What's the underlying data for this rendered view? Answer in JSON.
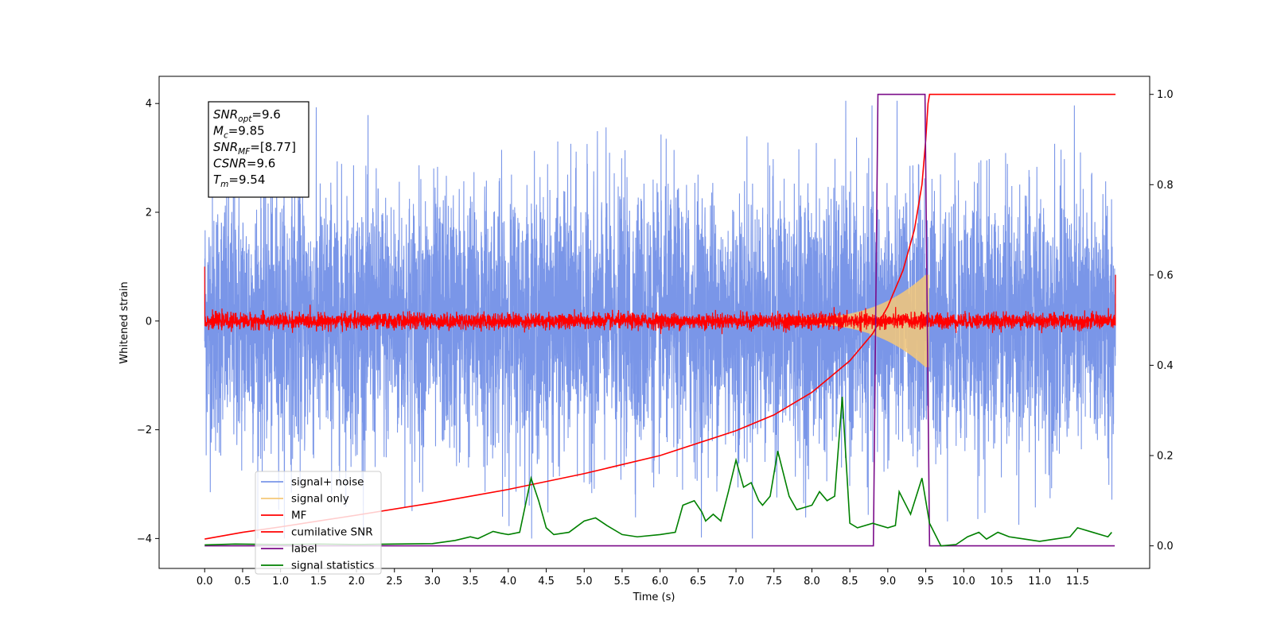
{
  "chart_data": {
    "type": "line",
    "xlabel": "Time (s)",
    "ylabel": "Whitened strain",
    "xlim": [
      -0.6,
      12.45
    ],
    "ylim": [
      -4.55,
      4.5
    ],
    "ylim_right": [
      -0.05,
      1.04
    ],
    "grid": false,
    "legend_position": "lower-left",
    "x_ticks": [
      "0.0",
      "0.5",
      "1.0",
      "1.5",
      "2.0",
      "2.5",
      "3.0",
      "3.5",
      "4.0",
      "4.5",
      "5.0",
      "5.5",
      "6.0",
      "6.5",
      "7.0",
      "7.5",
      "8.0",
      "8.5",
      "9.0",
      "9.5",
      "10.0",
      "10.5",
      "11.0",
      "11.5"
    ],
    "y_ticks_left": [
      "4",
      "2",
      "0",
      "−2",
      "−4"
    ],
    "y_ticks_right": [
      "1.0",
      "0.8",
      "0.6",
      "0.4",
      "0.2",
      "0.0"
    ],
    "annotation": {
      "lines": [
        {
          "var": "SNR",
          "sub": "opt",
          "value": "=9.6"
        },
        {
          "var": "M",
          "sub": "c",
          "value": "=9.85"
        },
        {
          "var": "SNR",
          "sub": "MF",
          "value": "=[8.77]"
        },
        {
          "var": "CSNR",
          "sub": "",
          "value": "=9.6"
        },
        {
          "var": "T",
          "sub": "m",
          "value": "=9.54"
        }
      ]
    },
    "series": [
      {
        "name": "signal+ noise",
        "color": "#7a96e8",
        "axis": "left",
        "description_envelope": {
          "x_range": [
            0.0,
            12.0
          ],
          "typical_amplitude": 1.2,
          "peak_positive": 4.05,
          "peak_negative": -4.0
        }
      },
      {
        "name": "signal only",
        "color": "#f5c878",
        "axis": "left",
        "chirp": {
          "start": 7.6,
          "merger": 9.5,
          "end": 9.54,
          "amplitude_at_start": 0.05,
          "amplitude_at_merger": 0.85
        }
      },
      {
        "name": "MF",
        "color": "#ff0000",
        "axis": "left",
        "description_envelope": {
          "x_range": [
            0.0,
            12.0
          ],
          "typical_amplitude": 0.12,
          "peak": 0.3,
          "edge_value_start": 1.0,
          "edge_value_end": 0.85
        }
      },
      {
        "name": "cumilative SNR",
        "color": "#ff0000",
        "axis": "right",
        "points": [
          [
            0.0,
            0.015
          ],
          [
            0.5,
            0.03
          ],
          [
            1.0,
            0.042
          ],
          [
            2.0,
            0.068
          ],
          [
            3.0,
            0.095
          ],
          [
            4.0,
            0.125
          ],
          [
            5.0,
            0.16
          ],
          [
            6.0,
            0.2
          ],
          [
            7.0,
            0.255
          ],
          [
            7.5,
            0.29
          ],
          [
            8.0,
            0.34
          ],
          [
            8.5,
            0.41
          ],
          [
            8.8,
            0.47
          ],
          [
            9.0,
            0.53
          ],
          [
            9.2,
            0.61
          ],
          [
            9.35,
            0.7
          ],
          [
            9.45,
            0.8
          ],
          [
            9.5,
            0.9
          ],
          [
            9.53,
            0.98
          ],
          [
            9.55,
            1.0
          ],
          [
            12.0,
            1.0
          ]
        ]
      },
      {
        "name": "label",
        "color": "#7b0c8a",
        "axis": "right",
        "points": [
          [
            0.0,
            0.0
          ],
          [
            8.81,
            0.0
          ],
          [
            8.87,
            1.0
          ],
          [
            9.49,
            1.0
          ],
          [
            9.55,
            0.0
          ],
          [
            11.99,
            0.0
          ]
        ]
      },
      {
        "name": "signal statistics",
        "color": "#008000",
        "axis": "right",
        "points": [
          [
            0.0,
            0.002
          ],
          [
            0.4,
            0.004
          ],
          [
            1.0,
            0.003
          ],
          [
            1.5,
            0.004
          ],
          [
            2.0,
            0.003
          ],
          [
            2.5,
            0.004
          ],
          [
            3.0,
            0.005
          ],
          [
            3.3,
            0.012
          ],
          [
            3.5,
            0.02
          ],
          [
            3.6,
            0.016
          ],
          [
            3.8,
            0.032
          ],
          [
            3.9,
            0.028
          ],
          [
            4.0,
            0.025
          ],
          [
            4.15,
            0.03
          ],
          [
            4.3,
            0.15
          ],
          [
            4.4,
            0.1
          ],
          [
            4.5,
            0.04
          ],
          [
            4.6,
            0.025
          ],
          [
            4.8,
            0.03
          ],
          [
            5.0,
            0.055
          ],
          [
            5.15,
            0.062
          ],
          [
            5.3,
            0.045
          ],
          [
            5.5,
            0.025
          ],
          [
            5.7,
            0.02
          ],
          [
            6.0,
            0.025
          ],
          [
            6.2,
            0.03
          ],
          [
            6.3,
            0.09
          ],
          [
            6.45,
            0.1
          ],
          [
            6.55,
            0.075
          ],
          [
            6.6,
            0.055
          ],
          [
            6.7,
            0.07
          ],
          [
            6.8,
            0.055
          ],
          [
            6.9,
            0.12
          ],
          [
            7.0,
            0.19
          ],
          [
            7.1,
            0.13
          ],
          [
            7.2,
            0.14
          ],
          [
            7.3,
            0.1
          ],
          [
            7.35,
            0.09
          ],
          [
            7.45,
            0.11
          ],
          [
            7.55,
            0.21
          ],
          [
            7.7,
            0.11
          ],
          [
            7.8,
            0.08
          ],
          [
            8.0,
            0.09
          ],
          [
            8.1,
            0.12
          ],
          [
            8.2,
            0.1
          ],
          [
            8.3,
            0.11
          ],
          [
            8.4,
            0.33
          ],
          [
            8.5,
            0.05
          ],
          [
            8.6,
            0.04
          ],
          [
            8.8,
            0.05
          ],
          [
            9.0,
            0.04
          ],
          [
            9.1,
            0.045
          ],
          [
            9.15,
            0.12
          ],
          [
            9.3,
            0.07
          ],
          [
            9.45,
            0.15
          ],
          [
            9.55,
            0.05
          ],
          [
            9.7,
            0.0
          ],
          [
            9.9,
            0.003
          ],
          [
            10.05,
            0.02
          ],
          [
            10.2,
            0.03
          ],
          [
            10.3,
            0.015
          ],
          [
            10.45,
            0.03
          ],
          [
            10.6,
            0.02
          ],
          [
            10.8,
            0.015
          ],
          [
            11.0,
            0.01
          ],
          [
            11.2,
            0.015
          ],
          [
            11.4,
            0.02
          ],
          [
            11.5,
            0.04
          ],
          [
            11.7,
            0.03
          ],
          [
            11.9,
            0.02
          ],
          [
            11.95,
            0.03
          ]
        ]
      }
    ]
  }
}
